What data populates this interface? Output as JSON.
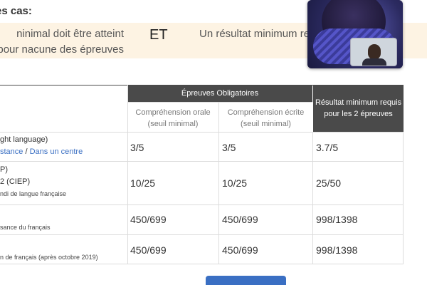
{
  "heading": "es cas:",
  "banner": {
    "left_text": "ninimal doit être atteint pour nacune des épreuves",
    "et": "ET",
    "right_text": "Un résultat minimum requ épreuves est"
  },
  "table": {
    "group_header": "Épreuves Obligatoires",
    "result_header": "Résultat minimum requis pour les 2 épreuves",
    "col1_header": "Compréhension orale (seuil minimal)",
    "col2_header": "Compréhension écrite (seuil minimal)",
    "rows": [
      {
        "label_line1": "ght language)",
        "label_link1": "stance",
        "label_sep": " / ",
        "label_link2": "Dans un centre",
        "oral": "3/5",
        "ecrit": "3/5",
        "result": "3.7/5"
      },
      {
        "label_line1": "P)",
        "label_line2": "2 (CIEP)",
        "label_small": "ndi de langue française",
        "oral": "10/25",
        "ecrit": "10/25",
        "result": "25/50"
      },
      {
        "label_small": "sance du français",
        "oral": "450/699",
        "ecrit": "450/699",
        "result": "998/1398"
      },
      {
        "label_small": "n de français (après octobre 2019)",
        "oral": "450/699",
        "ecrit": "450/699",
        "result": "998/1398"
      }
    ]
  },
  "bottom": {
    "text": "",
    "button_label": ""
  }
}
